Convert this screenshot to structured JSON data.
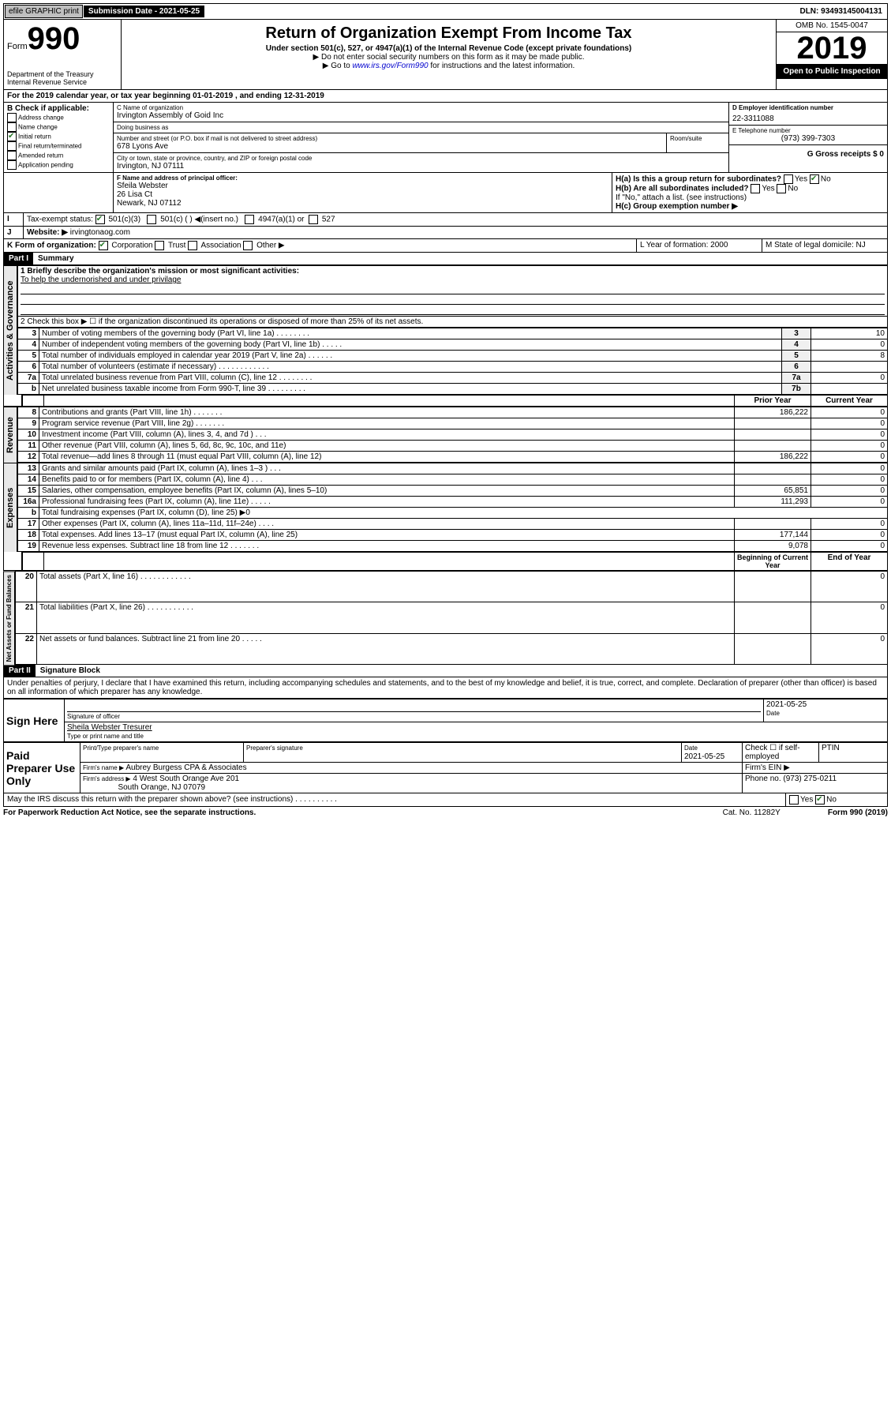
{
  "top": {
    "efile": "efile GRAPHIC print",
    "subdate_label": "Submission Date - 2021-05-25",
    "dln": "DLN: 93493145004131"
  },
  "header": {
    "form_label": "Form",
    "form_num": "990",
    "title": "Return of Organization Exempt From Income Tax",
    "sub1": "Under section 501(c), 527, or 4947(a)(1) of the Internal Revenue Code (except private foundations)",
    "sub2": "▶ Do not enter social security numbers on this form as it may be made public.",
    "sub3": "▶ Go to www.irs.gov/Form990 for instructions and the latest information.",
    "dept": "Department of the Treasury\nInternal Revenue Service",
    "omb": "OMB No. 1545-0047",
    "year": "2019",
    "inspect": "Open to Public Inspection"
  },
  "a": {
    "text": "For the 2019 calendar year, or tax year beginning 01-01-2019   , and ending 12-31-2019"
  },
  "b": {
    "label": "B Check if applicable:",
    "opts": [
      "Address change",
      "Name change",
      "Initial return",
      "Final return/terminated",
      "Amended return",
      "Application pending"
    ],
    "checked": [
      false,
      false,
      true,
      false,
      false,
      false
    ]
  },
  "c": {
    "name_label": "C Name of organization",
    "name": "Irvington Assembly of Goid Inc",
    "dba_label": "Doing business as",
    "dba": "",
    "addr_label": "Number and street (or P.O. box if mail is not delivered to street address)",
    "room": "Room/suite",
    "addr": "678 Lyons Ave",
    "city_label": "City or town, state or province, country, and ZIP or foreign postal code",
    "city": "Irvington, NJ  07111"
  },
  "d": {
    "label": "D Employer identification number",
    "val": "22-3311088"
  },
  "e": {
    "label": "E Telephone number",
    "val": "(973) 399-7303"
  },
  "g": {
    "label": "G Gross receipts $ 0"
  },
  "f": {
    "label": "F Name and address of principal officer:",
    "name": "Sfeila Webster",
    "addr1": "26 Lisa Ct",
    "addr2": "Newark, NJ  07112"
  },
  "h": {
    "a": "H(a)  Is this a group return for subordinates?",
    "a_yes": "Yes",
    "a_no": "No",
    "b": "H(b)  Are all subordinates included?",
    "b_note": "If \"No,\" attach a list. (see instructions)",
    "c": "H(c)  Group exemption number ▶"
  },
  "i": {
    "label": "Tax-exempt status:",
    "opts": [
      "501(c)(3)",
      "501(c) (  ) ◀(insert no.)",
      "4947(a)(1) or",
      "527"
    ]
  },
  "j": {
    "label": "Website: ▶",
    "val": "irvingtonaog.com"
  },
  "k": {
    "label": "K Form of organization:",
    "opts": [
      "Corporation",
      "Trust",
      "Association",
      "Other ▶"
    ]
  },
  "l": {
    "label": "L Year of formation: 2000"
  },
  "m": {
    "label": "M State of legal domicile: NJ"
  },
  "part1": {
    "hdr": "Part I",
    "title": "Summary"
  },
  "summary": {
    "q1": "1  Briefly describe the organization's mission or most significant activities:",
    "q1a": "To help the undernorished and under privilage",
    "q2": "2   Check this box ▶ ☐  if the organization discontinued its operations or disposed of more than 25% of its net assets.",
    "rows": [
      {
        "n": "3",
        "t": "Number of voting members of the governing body (Part VI, line 1a)  .   .   .   .   .   .   .   .",
        "k": "3",
        "v": "10"
      },
      {
        "n": "4",
        "t": "Number of independent voting members of the governing body (Part VI, line 1b)   .   .   .   .   .",
        "k": "4",
        "v": "0"
      },
      {
        "n": "5",
        "t": "Total number of individuals employed in calendar year 2019 (Part V, line 2a)   .   .   .   .   .   .",
        "k": "5",
        "v": "8"
      },
      {
        "n": "6",
        "t": "Total number of volunteers (estimate if necessary)   .   .   .   .   .   .   .   .   .   .   .   .",
        "k": "6",
        "v": ""
      },
      {
        "n": "7a",
        "t": "Total unrelated business revenue from Part VIII, column (C), line 12   .   .   .   .   .   .   .   .",
        "k": "7a",
        "v": "0"
      },
      {
        "n": "b",
        "t": "Net unrelated business taxable income from Form 990-T, line 39   .   .   .   .   .   .   .   .   .",
        "k": "7b",
        "v": ""
      }
    ],
    "py": "Prior Year",
    "cy": "Current Year",
    "rev": [
      {
        "n": "8",
        "t": "Contributions and grants (Part VIII, line 1h)   .   .   .   .   .   .   .",
        "p": "186,222",
        "c": "0"
      },
      {
        "n": "9",
        "t": "Program service revenue (Part VIII, line 2g)   .   .   .   .   .   .   .",
        "p": "",
        "c": "0"
      },
      {
        "n": "10",
        "t": "Investment income (Part VIII, column (A), lines 3, 4, and 7d )   .   .   .",
        "p": "",
        "c": "0"
      },
      {
        "n": "11",
        "t": "Other revenue (Part VIII, column (A), lines 5, 6d, 8c, 9c, 10c, and 11e)",
        "p": "",
        "c": "0"
      },
      {
        "n": "12",
        "t": "Total revenue—add lines 8 through 11 (must equal Part VIII, column (A), line 12)",
        "p": "186,222",
        "c": "0"
      }
    ],
    "exp": [
      {
        "n": "13",
        "t": "Grants and similar amounts paid (Part IX, column (A), lines 1–3 )   .   .   .",
        "p": "",
        "c": "0"
      },
      {
        "n": "14",
        "t": "Benefits paid to or for members (Part IX, column (A), line 4)   .   .   .",
        "p": "",
        "c": "0"
      },
      {
        "n": "15",
        "t": "Salaries, other compensation, employee benefits (Part IX, column (A), lines 5–10)",
        "p": "65,851",
        "c": "0"
      },
      {
        "n": "16a",
        "t": "Professional fundraising fees (Part IX, column (A), line 11e)   .   .   .   .   .",
        "p": "111,293",
        "c": "0"
      },
      {
        "n": "b",
        "t": "Total fundraising expenses (Part IX, column (D), line 25) ▶0",
        "p": null,
        "c": null
      },
      {
        "n": "17",
        "t": "Other expenses (Part IX, column (A), lines 11a–11d, 11f–24e)   .   .   .   .",
        "p": "",
        "c": "0"
      },
      {
        "n": "18",
        "t": "Total expenses. Add lines 13–17 (must equal Part IX, column (A), line 25)",
        "p": "177,144",
        "c": "0"
      },
      {
        "n": "19",
        "t": "Revenue less expenses. Subtract line 18 from line 12   .   .   .   .   .   .   .",
        "p": "9,078",
        "c": "0"
      }
    ],
    "by": "Beginning of Current Year",
    "ey": "End of Year",
    "net": [
      {
        "n": "20",
        "t": "Total assets (Part X, line 16)   .   .   .   .   .   .   .   .   .   .   .   .",
        "p": "",
        "c": "0"
      },
      {
        "n": "21",
        "t": "Total liabilities (Part X, line 26)   .   .   .   .   .   .   .   .   .   .   .",
        "p": "",
        "c": "0"
      },
      {
        "n": "22",
        "t": "Net assets or fund balances. Subtract line 21 from line 20   .   .   .   .   .",
        "p": "",
        "c": "0"
      }
    ],
    "tabs": [
      "Activities & Governance",
      "Revenue",
      "Expenses",
      "Net Assets or Fund Balances"
    ]
  },
  "part2": {
    "hdr": "Part II",
    "title": "Signature Block",
    "decl": "Under penalties of perjury, I declare that I have examined this return, including accompanying schedules and statements, and to the best of my knowledge and belief, it is true, correct, and complete. Declaration of preparer (other than officer) is based on all information of which preparer has any knowledge.",
    "sign_here": "Sign Here",
    "sig_off": "Signature of officer",
    "date": "2021-05-25",
    "date_l": "Date",
    "name": "Sheila Webster Tresurer",
    "name_l": "Type or print name and title",
    "paid": "Paid Preparer Use Only",
    "prep_name_l": "Print/Type preparer's name",
    "prep_sig_l": "Preparer's signature",
    "prep_date": "2021-05-25",
    "se": "Check ☐ if self-employed",
    "ptin": "PTIN",
    "firm_l": "Firm's name   ▶",
    "firm": "Aubrey Burgess CPA & Associates",
    "ein": "Firm's EIN ▶",
    "faddr_l": "Firm's address ▶",
    "faddr": "4 West South Orange Ave 201",
    "faddr2": "South Orange, NJ  07079",
    "phone_l": "Phone no. (973) 275-0211",
    "discuss": "May the IRS discuss this return with the preparer shown above? (see instructions)   .   .   .   .   .   .   .   .   .   .",
    "yes": "Yes",
    "no": "No"
  },
  "footer": {
    "l": "For Paperwork Reduction Act Notice, see the separate instructions.",
    "c": "Cat. No. 11282Y",
    "r": "Form 990 (2019)"
  }
}
